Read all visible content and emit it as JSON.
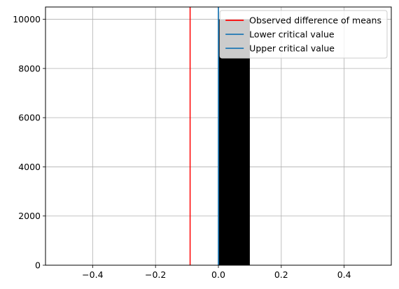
{
  "chart_data": {
    "type": "bar",
    "title": "",
    "xlabel": "",
    "ylabel": "",
    "xlim": [
      -0.55,
      0.55
    ],
    "ylim": [
      0,
      10500
    ],
    "x_ticks": [
      -0.4,
      -0.2,
      0.0,
      0.2,
      0.4
    ],
    "x_tick_labels": [
      "−0.4",
      "−0.2",
      "0.0",
      "0.2",
      "0.4"
    ],
    "y_ticks": [
      0,
      2000,
      4000,
      6000,
      8000,
      10000
    ],
    "y_tick_labels": [
      "0",
      "2000",
      "4000",
      "6000",
      "8000",
      "10000"
    ],
    "grid": true,
    "histogram": {
      "bins": [
        {
          "x0": 0.0,
          "x1": 0.1,
          "count": 10000
        }
      ],
      "color": "#000000"
    },
    "vlines": [
      {
        "name": "Observed difference of means",
        "x": -0.09,
        "color": "#ff0000"
      },
      {
        "name": "Lower critical value",
        "x": 0.0,
        "color": "#1f77b4"
      },
      {
        "name": "Upper critical value",
        "x": 0.0,
        "color": "#1f77b4"
      }
    ],
    "legend": {
      "position": "top-right",
      "entries": [
        {
          "label": "Observed difference of means",
          "color": "#ff0000"
        },
        {
          "label": "Lower critical value",
          "color": "#1f77b4"
        },
        {
          "label": "Upper critical value",
          "color": "#1f77b4"
        }
      ]
    }
  }
}
